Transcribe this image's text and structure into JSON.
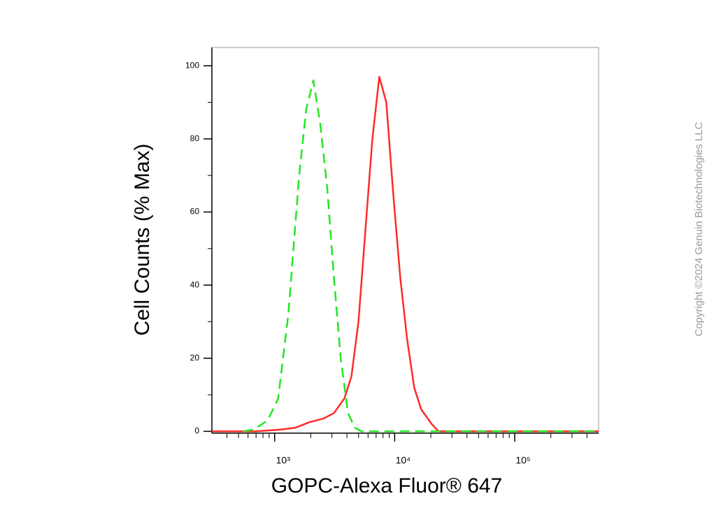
{
  "chart_data": {
    "type": "line",
    "xlabel": "GOPC-Alexa Fluor® 647",
    "ylabel": "Cell Counts (% Max)",
    "copyright": "Copyright ©2024 Genuin Biotechnologies LLC",
    "xscale": "log",
    "xlim": [
      300,
      500000
    ],
    "ylim": [
      -0.5,
      105
    ],
    "xticks": [
      {
        "value": 1000,
        "label": "10³"
      },
      {
        "value": 10000,
        "label": "10⁴"
      },
      {
        "value": 100000,
        "label": "10⁵"
      }
    ],
    "xminor_ticks": [
      400,
      500,
      600,
      700,
      800,
      900,
      2000,
      3000,
      4000,
      5000,
      6000,
      7000,
      8000,
      9000,
      20000,
      30000,
      40000,
      50000,
      60000,
      70000,
      80000,
      90000,
      200000,
      300000,
      400000
    ],
    "yticks": [
      0,
      20,
      40,
      60,
      80,
      100
    ],
    "yminor_ticks": [
      10,
      30,
      50,
      70,
      90
    ],
    "series": [
      {
        "color": "#22e622",
        "dash": true,
        "x": [
          547,
          670,
          875,
          1070,
          1300,
          1600,
          1830,
          2100,
          2400,
          2750,
          3100,
          3550,
          4080,
          4650,
          5300,
          500000
        ],
        "values": [
          0,
          0.5,
          3,
          9,
          32,
          70,
          88,
          96,
          84,
          66,
          43,
          20,
          5,
          1,
          0,
          0
        ]
      },
      {
        "color": "#ff2a2a",
        "dash": false,
        "x": [
          300,
          700,
          1140,
          1490,
          1950,
          2550,
          3120,
          3810,
          4360,
          4990,
          5700,
          6520,
          7450,
          8510,
          9730,
          11130,
          12720,
          14540,
          16620,
          20300,
          23200,
          500000
        ],
        "values": [
          0,
          0,
          0.5,
          1,
          2.5,
          3.5,
          5,
          9,
          15,
          30,
          55,
          80,
          97,
          90,
          65,
          42,
          25,
          12,
          6,
          2,
          0,
          0
        ]
      }
    ]
  }
}
